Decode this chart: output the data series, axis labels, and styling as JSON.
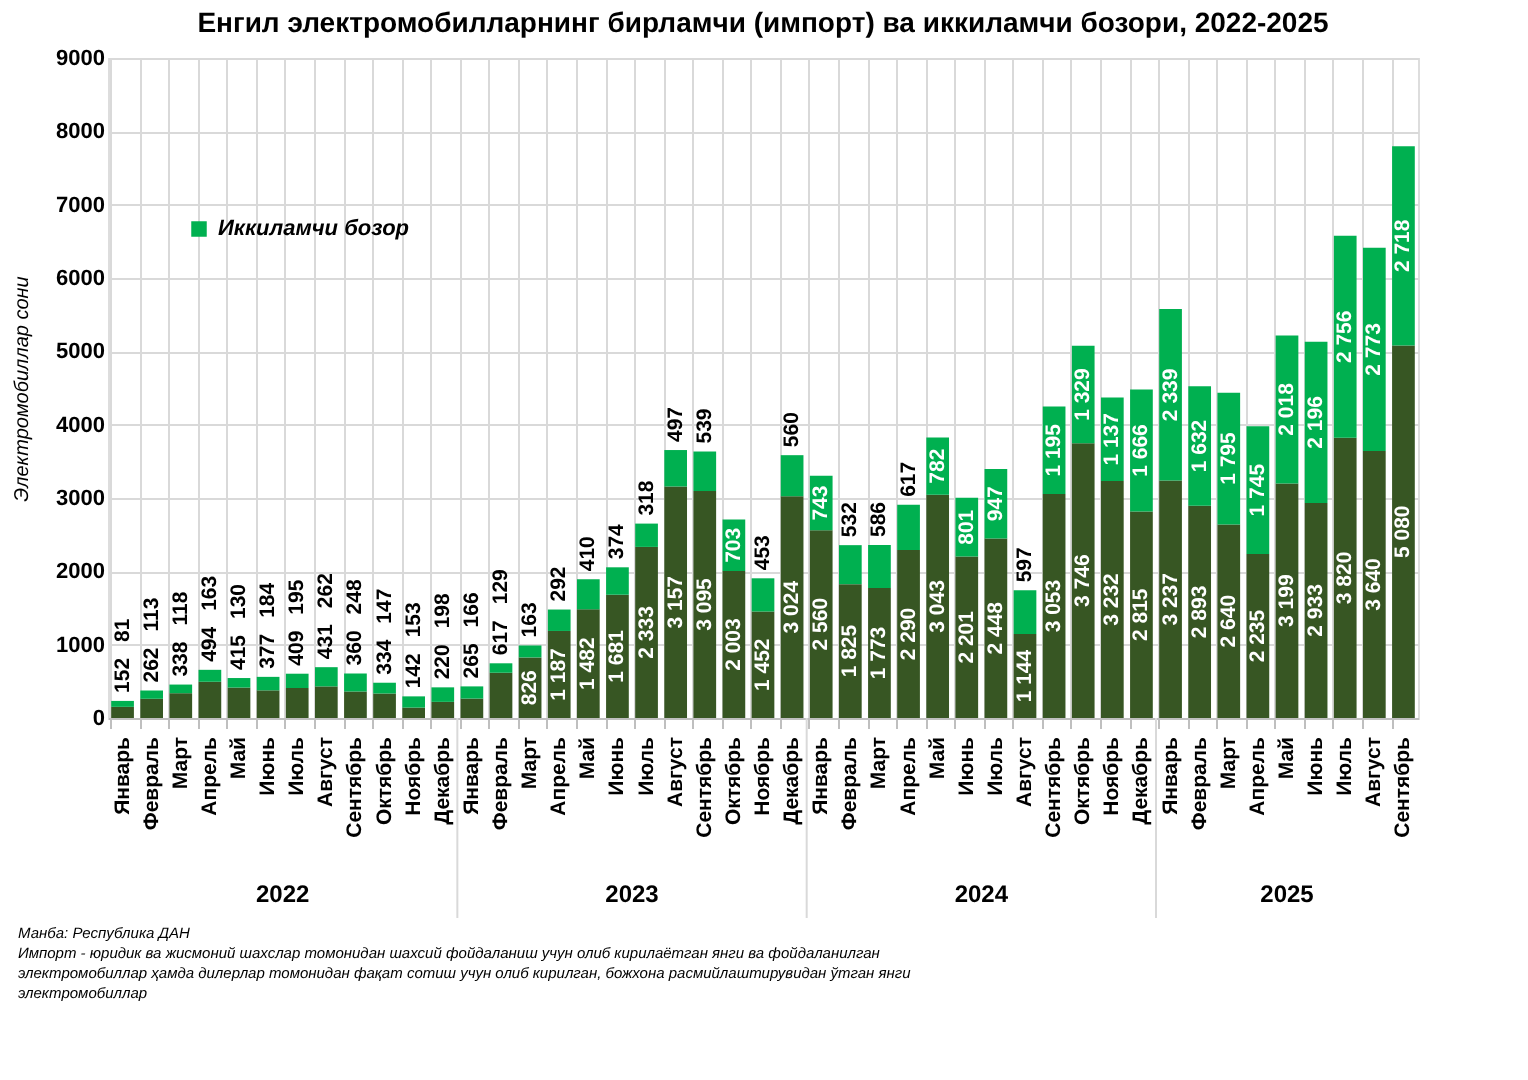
{
  "chart_data": {
    "type": "bar",
    "stacked": true,
    "title": "Енгил электромобилларнинг бирламчи (импорт) ва иккиламчи бозори, 2022-2025",
    "ylabel": "Электромобиллар сони",
    "categories": [
      "Январь",
      "Февраль",
      "Март",
      "Апрель",
      "Май",
      "Июнь",
      "Июль",
      "Август",
      "Сентябрь",
      "Октябрь",
      "Ноябрь",
      "Декабрь",
      "Январь",
      "Февраль",
      "Март",
      "Апрель",
      "Май",
      "Июнь",
      "Июль",
      "Август",
      "Сентябрь",
      "Октябрь",
      "Ноябрь",
      "Декабрь",
      "Январь",
      "Февраль",
      "Март",
      "Апрель",
      "Май",
      "Июнь",
      "Июль",
      "Август",
      "Сентябрь",
      "Октябрь",
      "Ноябрь",
      "Декабрь",
      "Январь",
      "Февраль",
      "Март",
      "Апрель",
      "Май",
      "Июнь",
      "Июль",
      "Август",
      "Сентябрь"
    ],
    "series": [
      {
        "color": "#375623",
        "values": [
          152,
          262,
          338,
          494,
          415,
          377,
          409,
          431,
          360,
          334,
          142,
          220,
          265,
          617,
          826,
          1187,
          1482,
          1681,
          2333,
          3157,
          3095,
          2003,
          1452,
          3024,
          2560,
          1825,
          1773,
          2290,
          3043,
          2201,
          2448,
          1144,
          3053,
          3746,
          3232,
          2815,
          3237,
          2893,
          2640,
          2235,
          3199,
          2933,
          3820,
          3640,
          5080
        ]
      },
      {
        "name": "Иккиламчи бозор",
        "color": "#00b050",
        "values": [
          81,
          113,
          118,
          163,
          130,
          184,
          195,
          262,
          248,
          147,
          153,
          198,
          166,
          129,
          163,
          292,
          410,
          374,
          318,
          497,
          539,
          703,
          453,
          560,
          743,
          532,
          586,
          617,
          782,
          801,
          947,
          597,
          1195,
          1329,
          1137,
          1666,
          2339,
          1632,
          1795,
          1745,
          2018,
          2196,
          2756,
          2773,
          2718
        ]
      }
    ],
    "ylim": [
      0,
      9000
    ],
    "yticks": [
      0,
      1000,
      2000,
      3000,
      4000,
      5000,
      6000,
      7000,
      8000,
      9000
    ],
    "grid": true,
    "legend": "top left",
    "data_labels": true,
    "annotations": [
      "2022",
      "2023",
      "2024",
      "2025",
      "Манба: Республика ДАН",
      "Импорт - юридик ва жисмоний шахслар томонидан шахсий фойдаланиш учун олиб кирилаётган янги ва фойдаланилган электромобиллар ҳамда дилерлар томонидан фақат сотиш учун олиб кирилган, божхона расмийлаштирувидан ўтган янги электромобиллар"
    ]
  }
}
